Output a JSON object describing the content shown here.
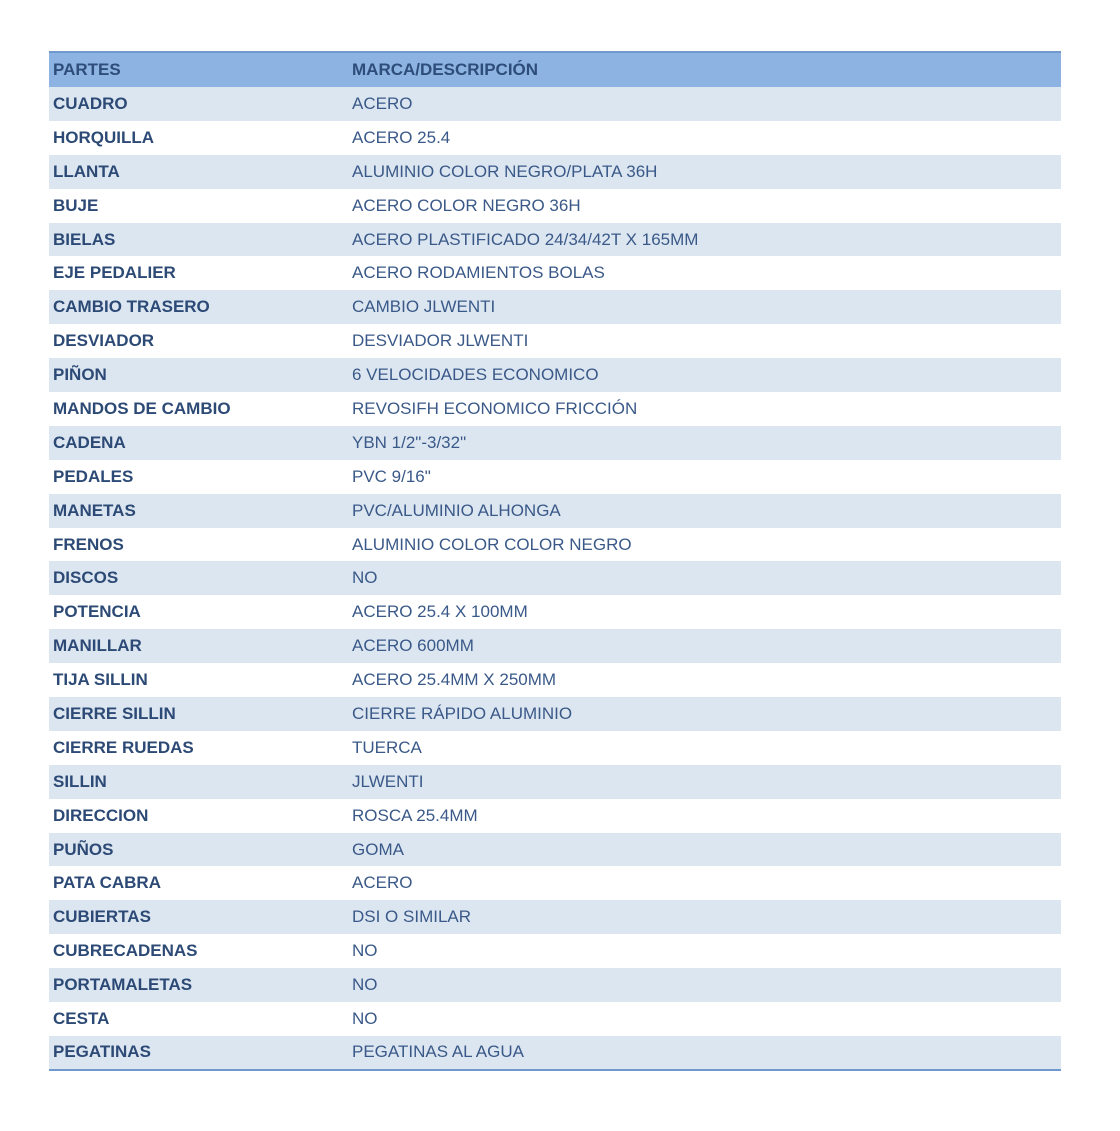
{
  "headers": {
    "part": "PARTES",
    "desc": "MARCA/DESCRIPCIÓN"
  },
  "colors": {
    "header_bg": "#8db3e2",
    "stripe_bg": "#dce6f1",
    "text": "#2e4d7a"
  },
  "rows": [
    {
      "part": "CUADRO",
      "desc": "ACERO"
    },
    {
      "part": "HORQUILLA",
      "desc": "ACERO 25.4"
    },
    {
      "part": "LLANTA",
      "desc": "ALUMINIO COLOR NEGRO/PLATA 36H"
    },
    {
      "part": "BUJE",
      "desc": "ACERO COLOR NEGRO 36H"
    },
    {
      "part": "BIELAS",
      "desc": "ACERO PLASTIFICADO 24/34/42T X 165MM"
    },
    {
      "part": "EJE PEDALIER",
      "desc": "ACERO RODAMIENTOS BOLAS"
    },
    {
      "part": "CAMBIO TRASERO",
      "desc": "CAMBIO JLWENTI"
    },
    {
      "part": "DESVIADOR",
      "desc": "DESVIADOR JLWENTI"
    },
    {
      "part": "PIÑON",
      "desc": "6 VELOCIDADES ECONOMICO"
    },
    {
      "part": "MANDOS DE CAMBIO",
      "desc": "REVOSIFH ECONOMICO FRICCIÓN"
    },
    {
      "part": "CADENA",
      "desc": "YBN 1/2\"-3/32\""
    },
    {
      "part": "PEDALES",
      "desc": "PVC 9/16\""
    },
    {
      "part": "MANETAS",
      "desc": "PVC/ALUMINIO ALHONGA"
    },
    {
      "part": "FRENOS",
      "desc": "ALUMINIO COLOR COLOR NEGRO"
    },
    {
      "part": "DISCOS",
      "desc": "NO"
    },
    {
      "part": "POTENCIA",
      "desc": "ACERO 25.4 X 100MM"
    },
    {
      "part": "MANILLAR",
      "desc": "ACERO 600MM"
    },
    {
      "part": "TIJA SILLIN",
      "desc": "ACERO 25.4MM X 250MM"
    },
    {
      "part": "CIERRE SILLIN",
      "desc": "CIERRE RÁPIDO ALUMINIO"
    },
    {
      "part": "CIERRE RUEDAS",
      "desc": "TUERCA"
    },
    {
      "part": "SILLIN",
      "desc": "JLWENTI"
    },
    {
      "part": "DIRECCION",
      "desc": "ROSCA 25.4MM"
    },
    {
      "part": "PUÑOS",
      "desc": "GOMA"
    },
    {
      "part": "PATA CABRA",
      "desc": "ACERO"
    },
    {
      "part": "CUBIERTAS",
      "desc": "DSI O SIMILAR"
    },
    {
      "part": "CUBRECADENAS",
      "desc": "NO"
    },
    {
      "part": "PORTAMALETAS",
      "desc": "NO"
    },
    {
      "part": "CESTA",
      "desc": "NO"
    },
    {
      "part": "PEGATINAS",
      "desc": "PEGATINAS AL AGUA"
    }
  ]
}
